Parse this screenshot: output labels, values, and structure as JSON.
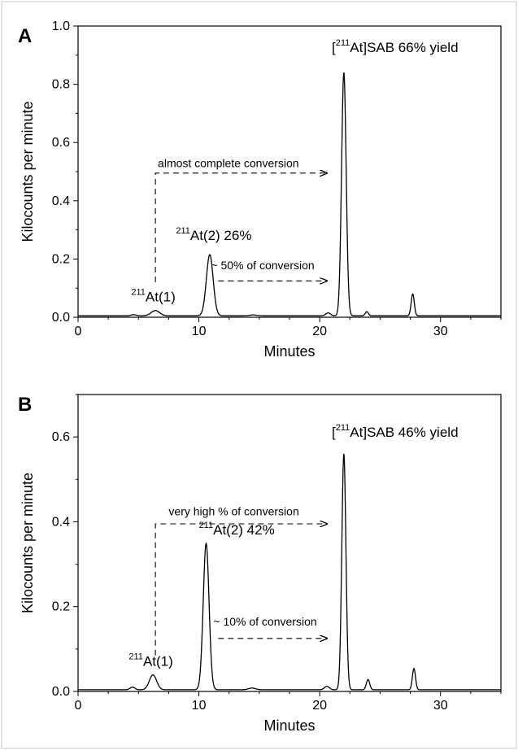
{
  "chart_data": [
    {
      "type": "line",
      "panel_label": "A",
      "xlabel": "Minutes",
      "ylabel": "Kilocounts per minute",
      "xlim": [
        0,
        35
      ],
      "ylim": [
        0,
        1.0
      ],
      "xticks": [
        "0",
        "10",
        "20",
        "30"
      ],
      "xtick_values": [
        0,
        10,
        20,
        30
      ],
      "yticks": [
        "0.0",
        "0.2",
        "0.4",
        "0.6",
        "0.8",
        "1.0"
      ],
      "ytick_values": [
        0,
        0.2,
        0.4,
        0.6,
        0.8,
        1.0
      ],
      "baseline": 0.005,
      "peaks": [
        {
          "center": 4.6,
          "height": 0.004,
          "width": 0.2
        },
        {
          "center": 6.4,
          "height": 0.018,
          "width": 0.35
        },
        {
          "center": 10.9,
          "height": 0.21,
          "width": 0.28
        },
        {
          "center": 14.5,
          "height": 0.003,
          "width": 0.3
        },
        {
          "center": 20.7,
          "height": 0.01,
          "width": 0.2
        },
        {
          "center": 22.0,
          "height": 0.835,
          "width": 0.19
        },
        {
          "center": 23.9,
          "height": 0.014,
          "width": 0.13
        },
        {
          "center": 27.7,
          "height": 0.075,
          "width": 0.13
        }
      ],
      "annotations": [
        {
          "pre": "[",
          "sup": "211",
          "main": "At]SAB 66% yield",
          "x": 21.0,
          "y": 0.91,
          "size": "large"
        },
        {
          "pre": "",
          "sup": "211",
          "main": "At(2) 26%",
          "x": 8.1,
          "y": 0.265,
          "size": "large"
        },
        {
          "pre": "",
          "sup": "211",
          "main": "At(1)",
          "x": 4.4,
          "y": 0.055,
          "size": "large"
        },
        {
          "pre": "",
          "sup": "",
          "main": "almost complete conversion",
          "x": 6.6,
          "y": 0.515,
          "size": "small"
        },
        {
          "pre": "",
          "sup": "",
          "main": "~ 50% of conversion",
          "x": 11.0,
          "y": 0.165,
          "size": "small"
        }
      ],
      "arrows": [
        {
          "points": [
            [
              6.4,
              0.12
            ],
            [
              6.4,
              0.495
            ],
            [
              20.6,
              0.495
            ]
          ]
        },
        {
          "points": [
            [
              11.6,
              0.125
            ],
            [
              20.6,
              0.125
            ]
          ]
        }
      ]
    },
    {
      "type": "line",
      "panel_label": "B",
      "xlabel": "Minutes",
      "ylabel": "Kilocounts per minute",
      "xlim": [
        0,
        35
      ],
      "ylim": [
        0,
        0.7
      ],
      "xticks": [
        "0",
        "10",
        "20",
        "30"
      ],
      "xtick_values": [
        0,
        10,
        20,
        30
      ],
      "yticks": [
        "0.0",
        "0.2",
        "0.4",
        "0.6"
      ],
      "ytick_values": [
        0,
        0.2,
        0.4,
        0.6
      ],
      "baseline": 0.004,
      "peaks": [
        {
          "center": 4.5,
          "height": 0.006,
          "width": 0.2
        },
        {
          "center": 6.2,
          "height": 0.035,
          "width": 0.3
        },
        {
          "center": 10.6,
          "height": 0.345,
          "width": 0.24
        },
        {
          "center": 14.4,
          "height": 0.004,
          "width": 0.3
        },
        {
          "center": 20.6,
          "height": 0.008,
          "width": 0.2
        },
        {
          "center": 22.0,
          "height": 0.556,
          "width": 0.17
        },
        {
          "center": 24.0,
          "height": 0.024,
          "width": 0.14
        },
        {
          "center": 27.8,
          "height": 0.05,
          "width": 0.13
        }
      ],
      "annotations": [
        {
          "pre": "[",
          "sup": "211",
          "main": "At]SAB 46% yield",
          "x": 21.0,
          "y": 0.6,
          "size": "large"
        },
        {
          "pre": "",
          "sup": "211",
          "main": "At(2) 42%",
          "x": 10.0,
          "y": 0.37,
          "size": "large"
        },
        {
          "pre": "",
          "sup": "211",
          "main": "At(1)",
          "x": 4.2,
          "y": 0.06,
          "size": "large"
        },
        {
          "pre": "",
          "sup": "",
          "main": "very high % of conversion",
          "x": 7.5,
          "y": 0.415,
          "size": "small"
        },
        {
          "pre": "",
          "sup": "",
          "main": "~ 10% of conversion",
          "x": 11.2,
          "y": 0.155,
          "size": "small"
        }
      ],
      "arrows": [
        {
          "points": [
            [
              6.4,
              0.085
            ],
            [
              6.4,
              0.395
            ],
            [
              20.6,
              0.395
            ]
          ]
        },
        {
          "points": [
            [
              11.6,
              0.125
            ],
            [
              20.6,
              0.125
            ]
          ]
        }
      ]
    }
  ]
}
